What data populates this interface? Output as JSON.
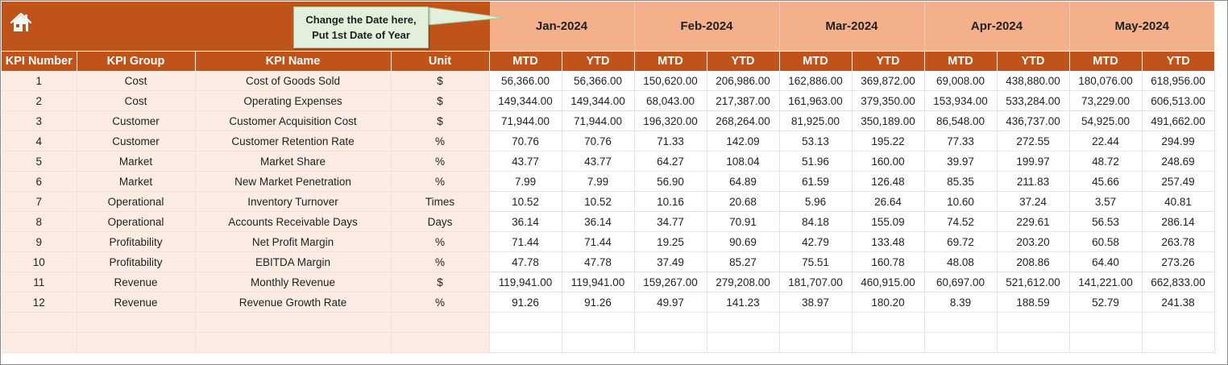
{
  "note": {
    "line1": "Change the Date here,",
    "line2": "Put 1st Date of Year"
  },
  "header": {
    "kpi_number": "KPI Number",
    "kpi_group": "KPI Group",
    "kpi_name": "KPI Name",
    "unit": "Unit",
    "mtd": "MTD",
    "ytd": "YTD"
  },
  "months": [
    "Jan-2024",
    "Feb-2024",
    "Mar-2024",
    "Apr-2024",
    "May-2024"
  ],
  "rows": [
    {
      "num": "1",
      "group": "Cost",
      "name": "Cost of Goods Sold",
      "unit": "$",
      "values": [
        "56,366.00",
        "56,366.00",
        "150,620.00",
        "206,986.00",
        "162,886.00",
        "369,872.00",
        "69,008.00",
        "438,880.00",
        "180,076.00",
        "618,956.00"
      ]
    },
    {
      "num": "2",
      "group": "Cost",
      "name": "Operating Expenses",
      "unit": "$",
      "values": [
        "149,344.00",
        "149,344.00",
        "68,043.00",
        "217,387.00",
        "161,963.00",
        "379,350.00",
        "153,934.00",
        "533,284.00",
        "73,229.00",
        "606,513.00"
      ]
    },
    {
      "num": "3",
      "group": "Customer",
      "name": "Customer Acquisition Cost",
      "unit": "$",
      "values": [
        "71,944.00",
        "71,944.00",
        "196,320.00",
        "268,264.00",
        "81,925.00",
        "350,189.00",
        "86,548.00",
        "436,737.00",
        "54,925.00",
        "491,662.00"
      ]
    },
    {
      "num": "4",
      "group": "Customer",
      "name": "Customer Retention Rate",
      "unit": "%",
      "values": [
        "70.76",
        "70.76",
        "71.33",
        "142.09",
        "53.13",
        "195.22",
        "77.33",
        "272.55",
        "22.44",
        "294.99"
      ]
    },
    {
      "num": "5",
      "group": "Market",
      "name": "Market Share",
      "unit": "%",
      "values": [
        "43.77",
        "43.77",
        "64.27",
        "108.04",
        "51.96",
        "160.00",
        "39.97",
        "199.97",
        "48.72",
        "248.69"
      ]
    },
    {
      "num": "6",
      "group": "Market",
      "name": "New Market Penetration",
      "unit": "%",
      "values": [
        "7.99",
        "7.99",
        "56.90",
        "64.89",
        "61.59",
        "126.48",
        "85.35",
        "211.83",
        "45.66",
        "257.49"
      ]
    },
    {
      "num": "7",
      "group": "Operational",
      "name": "Inventory Turnover",
      "unit": "Times",
      "values": [
        "10.52",
        "10.52",
        "10.16",
        "20.68",
        "5.96",
        "26.64",
        "10.60",
        "37.24",
        "3.57",
        "40.81"
      ]
    },
    {
      "num": "8",
      "group": "Operational",
      "name": "Accounts Receivable Days",
      "unit": "Days",
      "values": [
        "36.14",
        "36.14",
        "34.77",
        "70.91",
        "84.18",
        "155.09",
        "74.52",
        "229.61",
        "56.53",
        "286.14"
      ]
    },
    {
      "num": "9",
      "group": "Profitability",
      "name": "Net Profit Margin",
      "unit": "%",
      "values": [
        "71.44",
        "71.44",
        "19.25",
        "90.69",
        "42.79",
        "133.48",
        "69.72",
        "203.20",
        "60.58",
        "263.78"
      ]
    },
    {
      "num": "10",
      "group": "Profitability",
      "name": "EBITDA Margin",
      "unit": "%",
      "values": [
        "47.78",
        "47.78",
        "37.49",
        "85.27",
        "75.51",
        "160.78",
        "48.08",
        "208.86",
        "64.40",
        "273.26"
      ]
    },
    {
      "num": "11",
      "group": "Revenue",
      "name": "Monthly Revenue",
      "unit": "$",
      "values": [
        "119,941.00",
        "119,941.00",
        "159,267.00",
        "279,208.00",
        "181,707.00",
        "460,915.00",
        "60,697.00",
        "521,612.00",
        "141,221.00",
        "662,833.00"
      ]
    },
    {
      "num": "12",
      "group": "Revenue",
      "name": "Revenue Growth Rate",
      "unit": "%",
      "values": [
        "91.26",
        "91.26",
        "49.97",
        "141.23",
        "38.97",
        "180.20",
        "8.39",
        "188.59",
        "52.79",
        "241.38"
      ]
    }
  ],
  "icons": {
    "home": "home-icon"
  },
  "colors": {
    "accent": "#c0531a",
    "month_header": "#f4b08a",
    "row_fill": "#fdece4",
    "note_fill": "#e2efda"
  }
}
